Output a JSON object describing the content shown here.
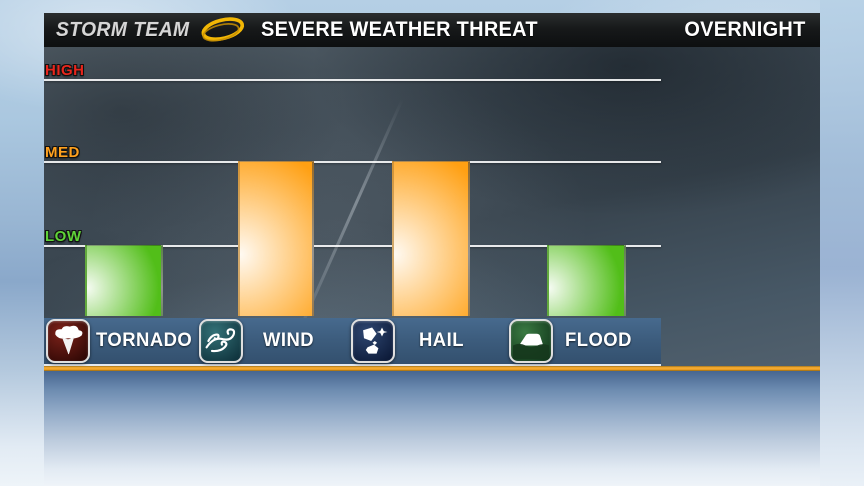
{
  "header": {
    "brand": "STORM TEAM",
    "title": "SEVERE WEATHER THREAT",
    "timeframe": "OVERNIGHT",
    "logo_color": "#f2b705"
  },
  "axis": {
    "levels": [
      {
        "label": "HIGH",
        "color": "#e8261d"
      },
      {
        "label": "MED",
        "color": "#ffa11e"
      },
      {
        "label": "LOW",
        "color": "#5fd338"
      }
    ]
  },
  "legend": [
    {
      "label": "TORNADO",
      "icon": "tornado-icon",
      "icon_bg_top": "#7d221a",
      "icon_bg_bottom": "#2f0805"
    },
    {
      "label": "WIND",
      "icon": "wind-icon",
      "icon_bg_top": "#337076",
      "icon_bg_bottom": "#0f333d"
    },
    {
      "label": "HAIL",
      "icon": "hail-icon",
      "icon_bg_top": "#2e4670",
      "icon_bg_bottom": "#0c1a38"
    },
    {
      "label": "FLOOD",
      "icon": "flood-icon",
      "icon_bg_top": "#3a7a42",
      "icon_bg_bottom": "#10351a"
    }
  ],
  "chart_data": {
    "type": "bar",
    "title": "SEVERE WEATHER THREAT",
    "subtitle": "OVERNIGHT",
    "categories": [
      "TORNADO",
      "WIND",
      "HAIL",
      "FLOOD"
    ],
    "values": [
      "LOW",
      "MED",
      "MED",
      "LOW"
    ],
    "values_numeric": [
      1,
      2,
      2,
      1
    ],
    "levels_scale": [
      "LOW",
      "MED",
      "HIGH"
    ],
    "ylim": [
      0,
      3
    ],
    "bar_colors": [
      "#52be19",
      "#ffa013",
      "#ffa013",
      "#52be19"
    ],
    "gridlines": true,
    "legend_position": "bottom"
  }
}
